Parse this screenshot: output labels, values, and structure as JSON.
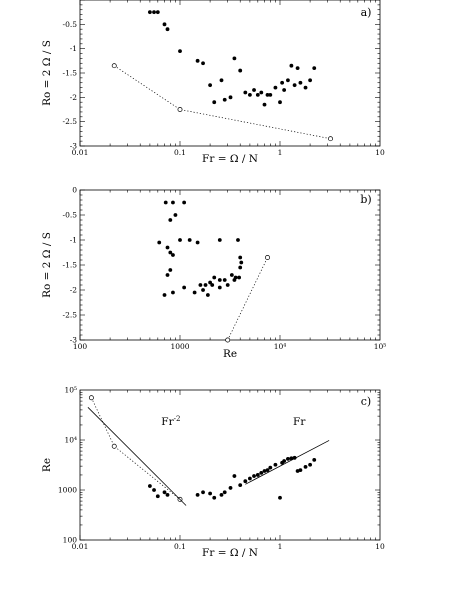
{
  "chart_data": [
    {
      "type": "scatter",
      "panel_label": "a)",
      "xlabel": "Fr = Ω / N",
      "ylabel": "Ro = 2 Ω / S",
      "xscale": "log",
      "xlim": [
        0.01,
        10
      ],
      "ylim": [
        -3,
        0
      ],
      "xticks": [
        {
          "v": 0.01,
          "t": "0.01"
        },
        {
          "v": 0.1,
          "t": "0.1"
        },
        {
          "v": 1,
          "t": "1"
        },
        {
          "v": 10,
          "t": "10"
        }
      ],
      "yticks": [
        {
          "v": -0.5,
          "t": "-0.5"
        },
        {
          "v": -1,
          "t": "-1"
        },
        {
          "v": -1.5,
          "t": "-1.5"
        },
        {
          "v": -2,
          "t": "-2"
        },
        {
          "v": -2.5,
          "t": "-2.5"
        },
        {
          "v": -3,
          "t": "-3"
        }
      ],
      "series": [
        {
          "marker": "filled",
          "points": [
            [
              0.05,
              -0.25
            ],
            [
              0.055,
              -0.25
            ],
            [
              0.06,
              -0.25
            ],
            [
              0.07,
              -0.5
            ],
            [
              0.075,
              -0.6
            ],
            [
              0.1,
              -1.05
            ],
            [
              0.15,
              -1.25
            ],
            [
              0.17,
              -1.3
            ],
            [
              0.2,
              -1.75
            ],
            [
              0.22,
              -2.1
            ],
            [
              0.26,
              -1.65
            ],
            [
              0.28,
              -2.05
            ],
            [
              0.32,
              -2.0
            ],
            [
              0.35,
              -1.2
            ],
            [
              0.4,
              -1.45
            ],
            [
              0.45,
              -1.9
            ],
            [
              0.5,
              -1.95
            ],
            [
              0.55,
              -1.85
            ],
            [
              0.6,
              -1.95
            ],
            [
              0.65,
              -1.9
            ],
            [
              0.7,
              -2.15
            ],
            [
              0.75,
              -1.95
            ],
            [
              0.8,
              -1.95
            ],
            [
              0.9,
              -1.8
            ],
            [
              1.0,
              -2.1
            ],
            [
              1.05,
              -1.7
            ],
            [
              1.1,
              -1.85
            ],
            [
              1.2,
              -1.65
            ],
            [
              1.3,
              -1.35
            ],
            [
              1.4,
              -1.75
            ],
            [
              1.5,
              -1.4
            ],
            [
              1.6,
              -1.7
            ],
            [
              1.8,
              -1.8
            ],
            [
              2.0,
              -1.65
            ],
            [
              2.2,
              -1.4
            ]
          ]
        },
        {
          "marker": "open",
          "line": "dotted",
          "points": [
            [
              0.022,
              -1.35
            ],
            [
              0.1,
              -2.25
            ],
            [
              3.2,
              -2.85
            ]
          ]
        }
      ]
    },
    {
      "type": "scatter",
      "panel_label": "b)",
      "xlabel": "Re",
      "ylabel": "Ro = 2 Ω / S",
      "xscale": "log",
      "xlim": [
        100,
        100000
      ],
      "ylim": [
        -3,
        0
      ],
      "xticks": [
        {
          "v": 100,
          "t": "100"
        },
        {
          "v": 1000,
          "t": "1000"
        },
        {
          "v": 10000,
          "t": "10⁴"
        },
        {
          "v": 100000,
          "t": "10⁵"
        }
      ],
      "yticks": [
        {
          "v": 0,
          "t": "0"
        },
        {
          "v": -0.5,
          "t": "-0.5"
        },
        {
          "v": -1,
          "t": "-1"
        },
        {
          "v": -1.5,
          "t": "-1.5"
        },
        {
          "v": -2,
          "t": "-2"
        },
        {
          "v": -2.5,
          "t": "-2.5"
        },
        {
          "v": -3,
          "t": "-3"
        }
      ],
      "series": [
        {
          "marker": "filled",
          "points": [
            [
              720,
              -0.25
            ],
            [
              850,
              -0.25
            ],
            [
              1100,
              -0.25
            ],
            [
              800,
              -0.6
            ],
            [
              900,
              -0.5
            ],
            [
              620,
              -1.05
            ],
            [
              750,
              -1.15
            ],
            [
              800,
              -1.25
            ],
            [
              1000,
              -1.0
            ],
            [
              1250,
              -1.0
            ],
            [
              1500,
              -1.05
            ],
            [
              2500,
              -1.0
            ],
            [
              3800,
              -1.0
            ],
            [
              4000,
              -1.35
            ],
            [
              4100,
              -1.45
            ],
            [
              4000,
              -1.55
            ],
            [
              850,
              -1.3
            ],
            [
              800,
              -1.6
            ],
            [
              750,
              -1.7
            ],
            [
              1600,
              -1.9
            ],
            [
              1800,
              -1.9
            ],
            [
              2000,
              -1.85
            ],
            [
              2200,
              -1.75
            ],
            [
              2500,
              -1.8
            ],
            [
              2800,
              -1.8
            ],
            [
              3000,
              -1.9
            ],
            [
              3300,
              -1.7
            ],
            [
              3600,
              -1.75
            ],
            [
              3900,
              -1.75
            ],
            [
              700,
              -2.1
            ],
            [
              850,
              -2.05
            ],
            [
              1100,
              -1.95
            ],
            [
              1400,
              -2.05
            ],
            [
              1700,
              -2.0
            ],
            [
              1900,
              -2.1
            ],
            [
              2100,
              -1.9
            ],
            [
              2500,
              -1.95
            ],
            [
              3500,
              -1.8
            ]
          ]
        },
        {
          "marker": "open",
          "line": "dotted",
          "points": [
            [
              3000,
              -3.0
            ],
            [
              7500,
              -1.35
            ]
          ]
        }
      ]
    },
    {
      "type": "scatter",
      "panel_label": "c)",
      "xlabel": "Fr = Ω / N",
      "ylabel": "Re",
      "xscale": "log",
      "yscale": "log",
      "xlim": [
        0.01,
        10
      ],
      "ylim": [
        100,
        100000
      ],
      "xticks": [
        {
          "v": 0.01,
          "t": "0.01"
        },
        {
          "v": 0.1,
          "t": "0.1"
        },
        {
          "v": 1,
          "t": "1"
        },
        {
          "v": 10,
          "t": "10"
        }
      ],
      "yticks": [
        {
          "v": 100,
          "t": "100"
        },
        {
          "v": 1000,
          "t": "1000"
        },
        {
          "v": 10000,
          "t": "10⁴"
        },
        {
          "v": 100000,
          "t": "10⁵"
        }
      ],
      "annotations": [
        {
          "text": "Fr",
          "sup": "-2",
          "x": 0.065,
          "y": 20000
        },
        {
          "text": "Fr",
          "sup": "",
          "x": 1.35,
          "y": 20000
        }
      ],
      "series": [
        {
          "marker": "filled",
          "points": [
            [
              0.05,
              1200
            ],
            [
              0.055,
              1000
            ],
            [
              0.06,
              750
            ],
            [
              0.07,
              900
            ],
            [
              0.075,
              800
            ],
            [
              0.1,
              650
            ],
            [
              0.15,
              800
            ],
            [
              0.17,
              900
            ],
            [
              0.2,
              850
            ],
            [
              0.22,
              700
            ],
            [
              0.26,
              800
            ],
            [
              0.28,
              900
            ],
            [
              0.32,
              1100
            ],
            [
              0.35,
              1900
            ],
            [
              0.4,
              1250
            ],
            [
              0.45,
              1500
            ],
            [
              0.5,
              1700
            ],
            [
              0.55,
              1900
            ],
            [
              0.6,
              2000
            ],
            [
              0.65,
              2200
            ],
            [
              0.7,
              2400
            ],
            [
              0.75,
              2500
            ],
            [
              0.8,
              2800
            ],
            [
              0.9,
              3200
            ],
            [
              1.0,
              700
            ],
            [
              1.05,
              3500
            ],
            [
              1.1,
              3800
            ],
            [
              1.2,
              4200
            ],
            [
              1.3,
              4300
            ],
            [
              1.4,
              4400
            ],
            [
              1.5,
              2400
            ],
            [
              1.6,
              2500
            ],
            [
              1.8,
              2900
            ],
            [
              2.0,
              3200
            ],
            [
              2.2,
              4000
            ]
          ]
        },
        {
          "marker": "open",
          "line": "dotted",
          "points": [
            [
              0.013,
              70000
            ],
            [
              0.022,
              7500
            ],
            [
              0.1,
              650
            ]
          ]
        },
        {
          "marker": "none",
          "line": "solid",
          "points": [
            [
              0.012,
              45000
            ],
            [
              0.115,
              490
            ]
          ]
        },
        {
          "marker": "none",
          "line": "solid",
          "points": [
            [
              0.45,
              1300
            ],
            [
              3.1,
              9800
            ]
          ]
        }
      ]
    }
  ]
}
